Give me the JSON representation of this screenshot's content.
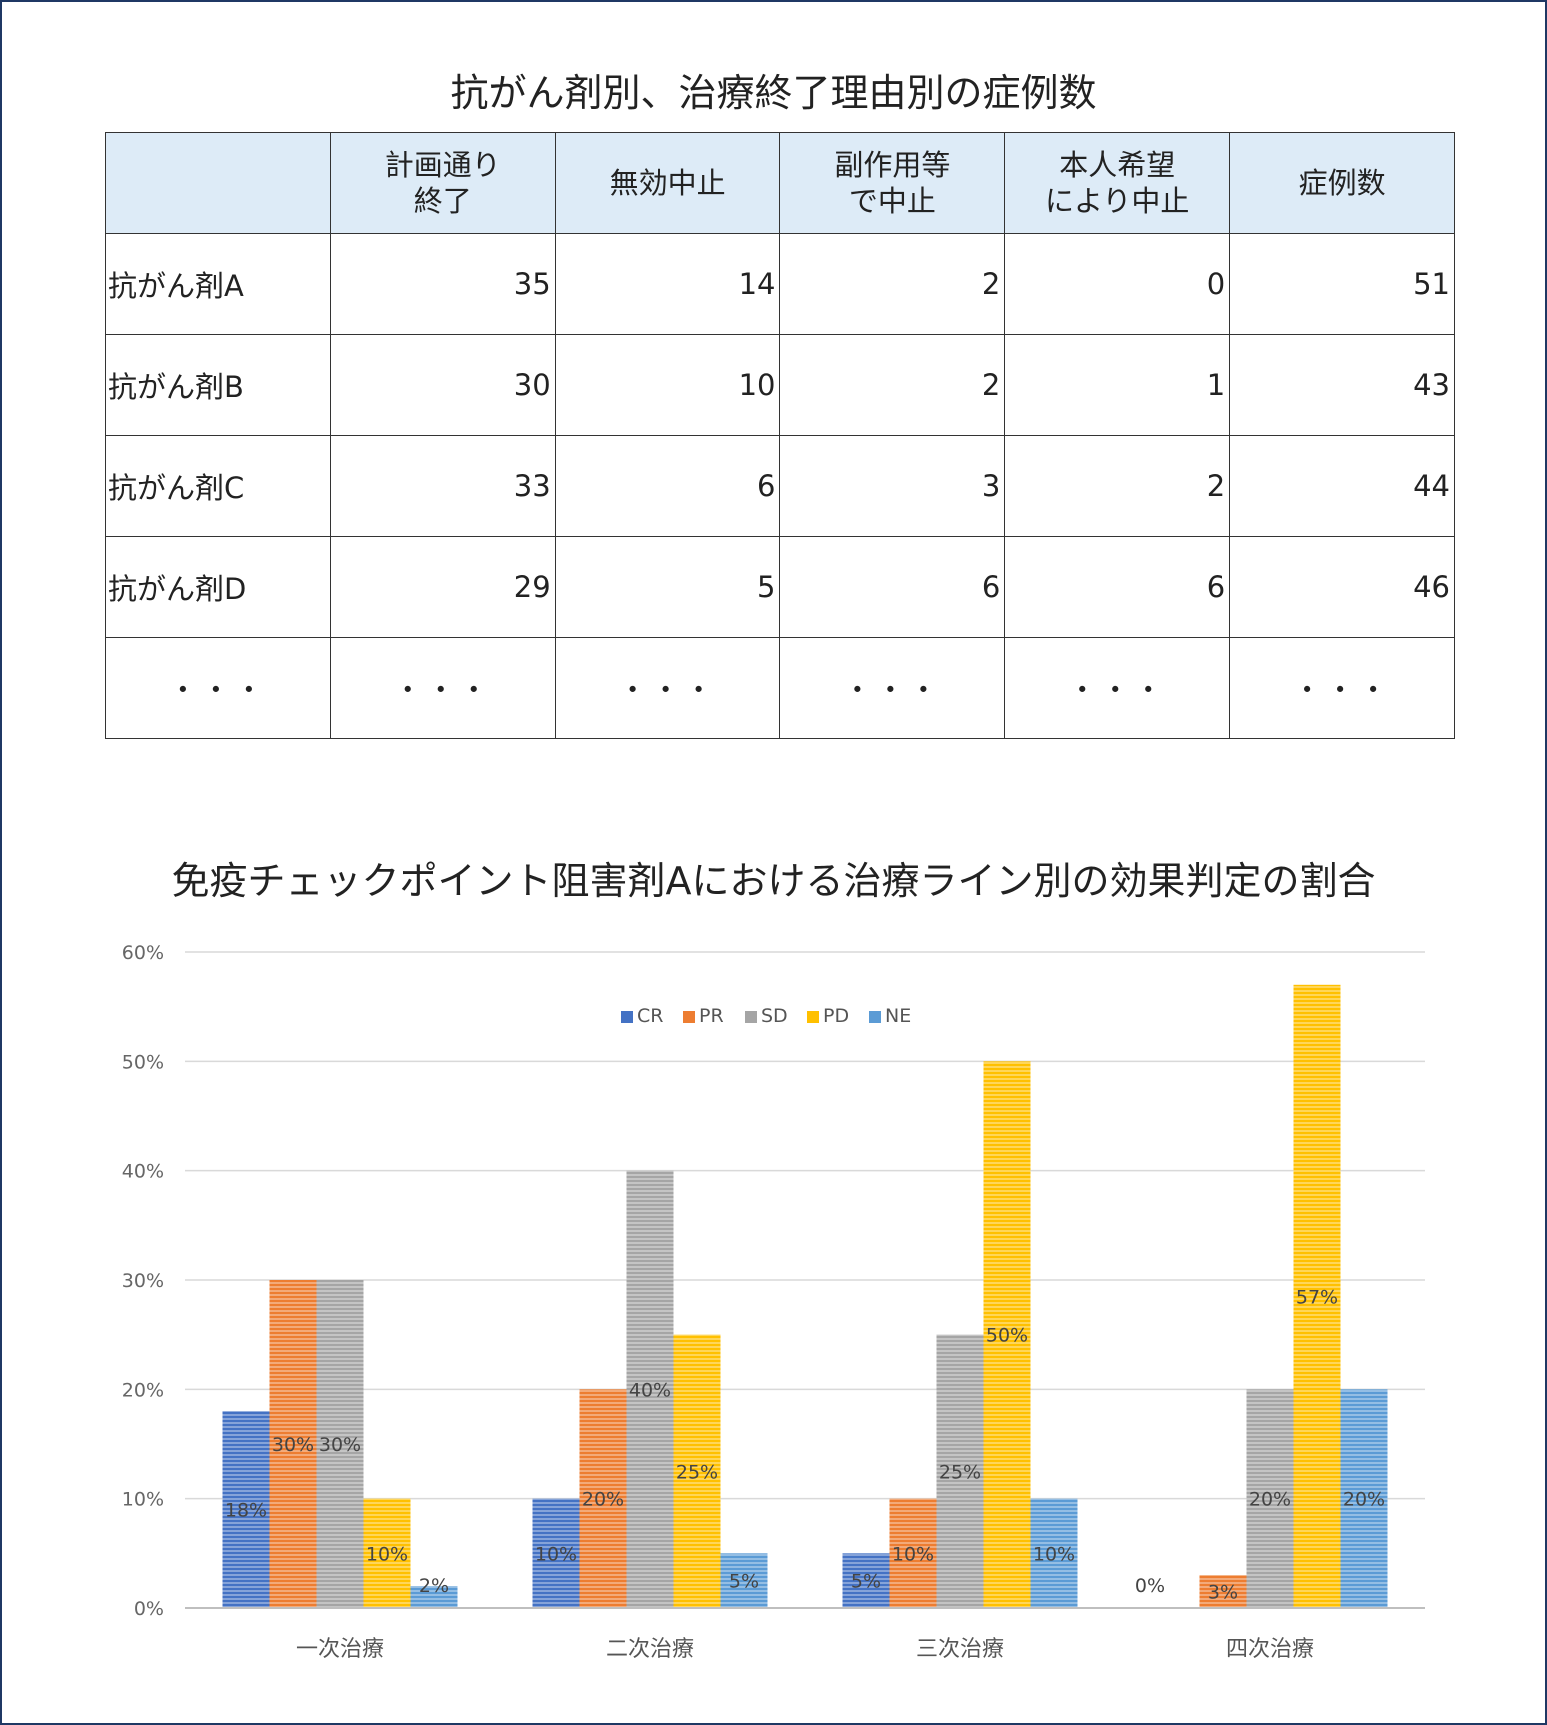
{
  "table": {
    "title": "抗がん剤別、治療終了理由別の症例数",
    "headers": [
      "",
      "計画通り\n終了",
      "無効中止",
      "副作用等\nで中止",
      "本人希望\nにより中止",
      "症例数"
    ],
    "rows": [
      {
        "label": "抗がん剤A",
        "values": [
          "35",
          "14",
          "2",
          "0",
          "51"
        ]
      },
      {
        "label": "抗がん剤B",
        "values": [
          "30",
          "10",
          "2",
          "1",
          "43"
        ]
      },
      {
        "label": "抗がん剤C",
        "values": [
          "33",
          "6",
          "3",
          "2",
          "44"
        ]
      },
      {
        "label": "抗がん剤D",
        "values": [
          "29",
          "5",
          "6",
          "6",
          "46"
        ]
      },
      {
        "label": "…",
        "values": [
          "…",
          "…",
          "…",
          "…",
          "…"
        ]
      }
    ]
  },
  "chart_data": [
    {
      "type": "table",
      "title": "抗がん剤別、治療終了理由別の症例数",
      "columns": [
        "計画通り終了",
        "無効中止",
        "副作用等で中止",
        "本人希望により中止",
        "症例数"
      ],
      "rows": [
        "抗がん剤A",
        "抗がん剤B",
        "抗がん剤C",
        "抗がん剤D"
      ],
      "values": [
        [
          35,
          14,
          2,
          0,
          51
        ],
        [
          30,
          10,
          2,
          1,
          43
        ],
        [
          33,
          6,
          3,
          2,
          44
        ],
        [
          29,
          5,
          6,
          6,
          46
        ]
      ]
    },
    {
      "type": "bar",
      "title": "免疫チェックポイント阻害剤Aにおける治療ライン別の効果判定の割合",
      "categories": [
        "一次治療",
        "二次治療",
        "三次治療",
        "四次治療"
      ],
      "series": [
        {
          "name": "CR",
          "color": "#4472c4",
          "values": [
            18,
            10,
            5,
            0
          ]
        },
        {
          "name": "PR",
          "color": "#ed7d31",
          "values": [
            30,
            20,
            10,
            3
          ]
        },
        {
          "name": "SD",
          "color": "#a5a5a5",
          "values": [
            30,
            40,
            25,
            20
          ]
        },
        {
          "name": "PD",
          "color": "#ffc000",
          "values": [
            10,
            25,
            50,
            57
          ]
        },
        {
          "name": "NE",
          "color": "#5b9bd5",
          "values": [
            2,
            5,
            10,
            20
          ]
        }
      ],
      "ylim": [
        0,
        60
      ],
      "yticks": [
        0,
        10,
        20,
        30,
        40,
        50,
        60
      ],
      "unit": "%",
      "legend": "top-center",
      "grid": true
    }
  ]
}
